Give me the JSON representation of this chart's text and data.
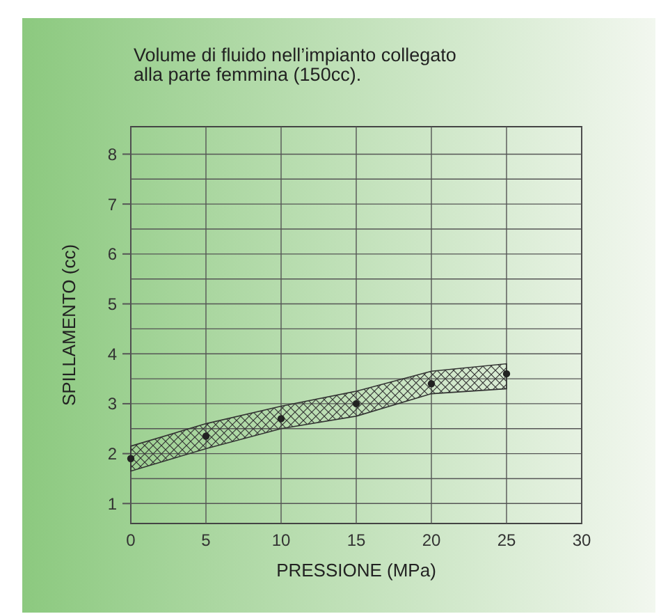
{
  "chart_data": {
    "type": "scatter",
    "title": "Volume di fluido nell’impianto collegato\nalla parte femmina (150cc).",
    "xlabel": "PRESSIONE (MPa)",
    "ylabel": "SPILLAMENTO (cc)",
    "x": [
      0,
      5,
      10,
      15,
      20,
      25
    ],
    "series": [
      {
        "color": "#222222",
        "values": [
          1.9,
          2.35,
          2.7,
          3.0,
          3.4,
          3.6
        ],
        "lower": [
          1.65,
          2.1,
          2.5,
          2.75,
          3.2,
          3.3
        ],
        "upper": [
          2.15,
          2.6,
          2.95,
          3.25,
          3.65,
          3.8
        ]
      }
    ],
    "xlim": [
      0,
      30
    ],
    "xticks": [
      0,
      5,
      10,
      15,
      20,
      25,
      30
    ],
    "ylim": [
      0.6,
      8.55
    ],
    "yticks": [
      1,
      {
        "value": 1.5,
        "label": null
      },
      2,
      {
        "value": 2.5,
        "label": null
      },
      3,
      {
        "value": 3.5,
        "label": null
      },
      4,
      {
        "value": 4.5,
        "label": null
      },
      5,
      {
        "value": 5.5,
        "label": null
      },
      6,
      {
        "value": 6.5,
        "label": null
      },
      7,
      {
        "value": 7.5,
        "label": null
      },
      8
    ],
    "grid": true,
    "marker": "circle"
  }
}
